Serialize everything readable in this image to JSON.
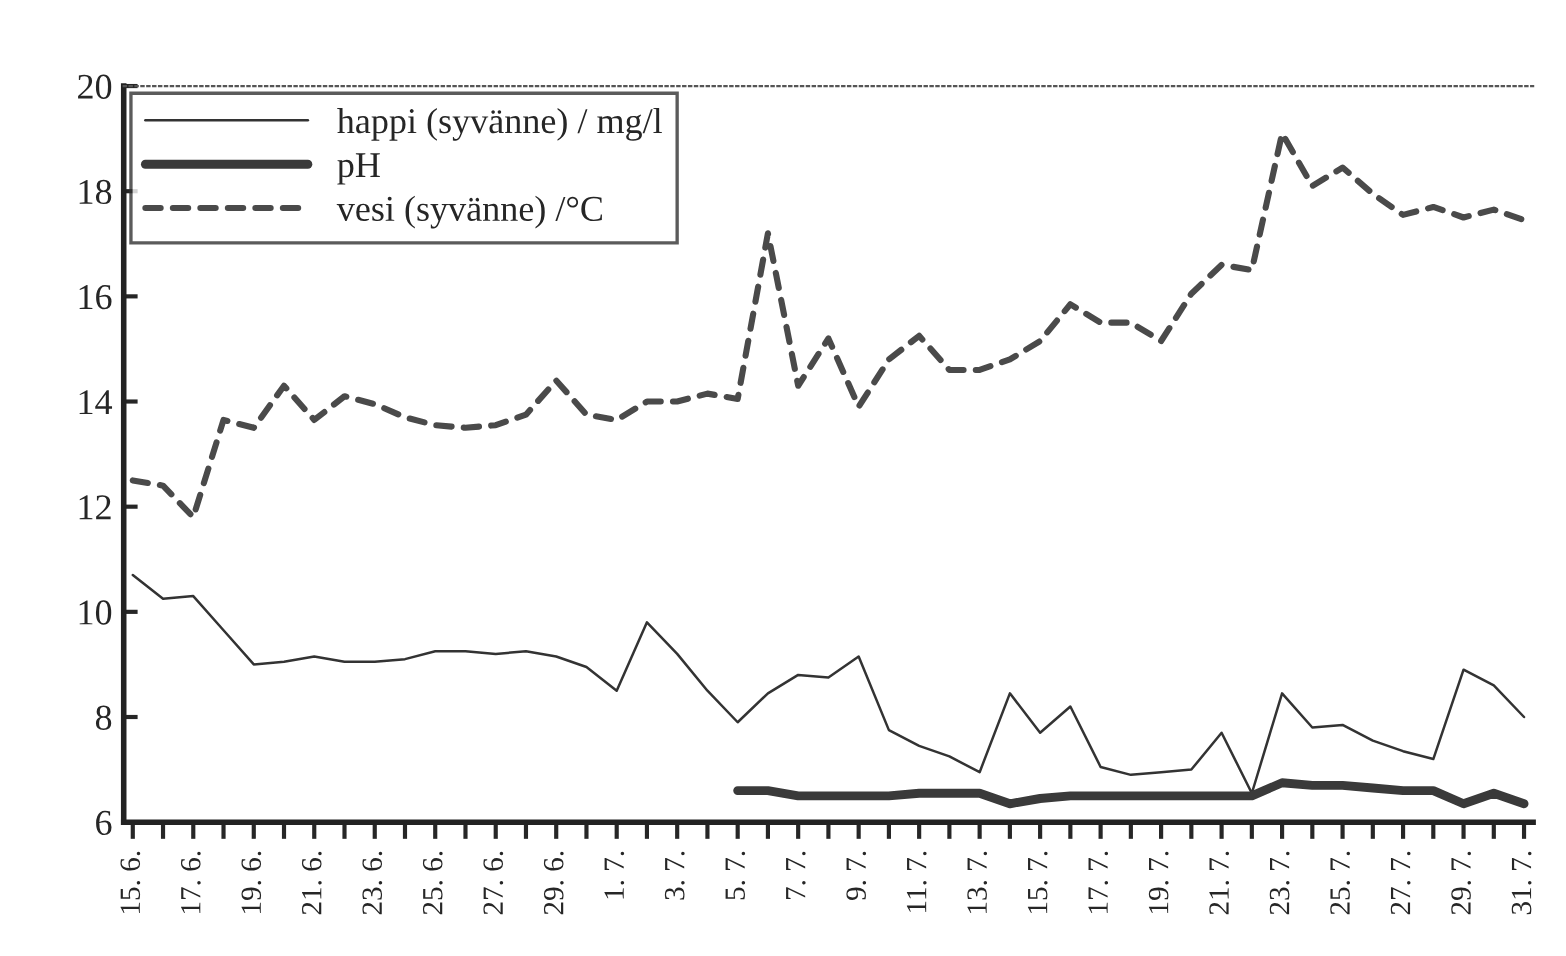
{
  "chart_data": {
    "type": "line",
    "categories": [
      "15. 6.",
      null,
      "17. 6.",
      null,
      "19. 6.",
      null,
      "21. 6.",
      null,
      "23. 6.",
      null,
      "25. 6.",
      null,
      "27. 6.",
      null,
      "29. 6.",
      null,
      "1. 7.",
      null,
      "3. 7.",
      null,
      "5. 7.",
      null,
      "7. 7.",
      null,
      "9. 7.",
      null,
      "11. 7.",
      null,
      "13. 7.",
      null,
      "15. 7.",
      null,
      "17. 7.",
      null,
      "19. 7.",
      null,
      "21. 7.",
      null,
      "23. 7.",
      null,
      "25. 7.",
      null,
      "27. 7.",
      null,
      "29. 7.",
      null,
      "31. 7."
    ],
    "series": [
      {
        "name": "happi (syvänne) / mg/l",
        "color": "#333333",
        "line_style": "solid",
        "values": [
          10.7,
          10.25,
          10.3,
          9.65,
          9.0,
          9.05,
          9.15,
          9.05,
          9.05,
          9.1,
          9.25,
          9.25,
          9.2,
          9.25,
          9.15,
          8.95,
          8.5,
          9.8,
          9.2,
          8.5,
          7.9,
          8.45,
          8.8,
          8.75,
          9.15,
          7.75,
          7.45,
          7.25,
          6.95,
          8.45,
          7.7,
          8.2,
          7.05,
          6.9,
          6.95,
          7.0,
          7.7,
          6.55,
          8.45,
          7.8,
          7.85,
          7.55,
          7.35,
          7.2,
          8.9,
          8.6,
          8.0
        ]
      },
      {
        "name": "pH",
        "color": "#3a3a3a",
        "line_style": "solid",
        "values": [
          null,
          null,
          null,
          null,
          null,
          null,
          null,
          null,
          null,
          null,
          null,
          null,
          null,
          null,
          null,
          null,
          null,
          null,
          null,
          null,
          6.6,
          6.6,
          6.5,
          6.5,
          6.5,
          6.5,
          6.55,
          6.55,
          6.55,
          6.35,
          6.45,
          6.5,
          6.5,
          6.5,
          6.5,
          6.5,
          6.5,
          6.5,
          6.75,
          6.7,
          6.7,
          6.65,
          6.6,
          6.6,
          6.35,
          6.55,
          6.35
        ]
      },
      {
        "name": "vesi (syvänne) /°C",
        "color": "#4a4a4a",
        "line_style": "dashed",
        "values": [
          12.5,
          12.4,
          11.8,
          13.65,
          13.5,
          14.3,
          13.65,
          14.1,
          13.95,
          13.7,
          13.55,
          13.5,
          13.55,
          13.75,
          14.4,
          13.75,
          13.65,
          14.0,
          14.0,
          14.15,
          14.05,
          17.2,
          14.3,
          15.2,
          13.9,
          14.8,
          15.25,
          14.6,
          14.6,
          14.8,
          15.15,
          15.85,
          15.5,
          15.5,
          15.15,
          16.05,
          16.6,
          16.5,
          19.1,
          18.1,
          18.45,
          17.95,
          17.55,
          17.7,
          17.5,
          17.65,
          17.45
        ]
      }
    ],
    "ylim": [
      6,
      20
    ],
    "yticks": [
      6,
      8,
      10,
      12,
      14,
      16,
      18,
      20
    ],
    "grid": false,
    "legend": "top left",
    "marker": "none"
  }
}
